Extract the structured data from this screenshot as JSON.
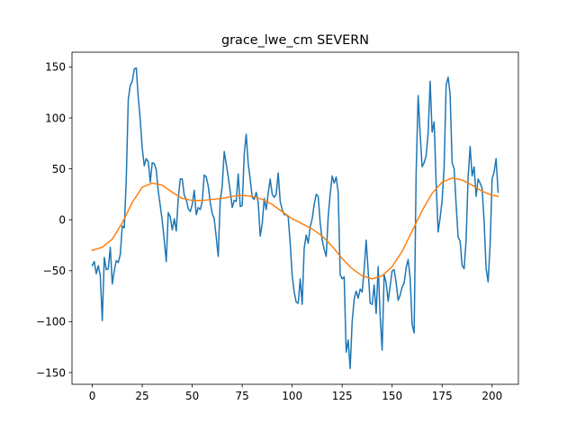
{
  "chart_data": {
    "type": "line",
    "title": "grace_lwe_cm SEVERN",
    "xlabel": "",
    "ylabel": "",
    "xlim": [
      -10.15,
      213.15
    ],
    "ylim": [
      -161.5,
      164.5
    ],
    "x_ticks": [
      0,
      25,
      50,
      75,
      100,
      125,
      150,
      175,
      200
    ],
    "y_ticks": [
      -150,
      -100,
      -50,
      0,
      50,
      100,
      150
    ],
    "grid": false,
    "legend": "none",
    "colors": {
      "series_1": "#1f77b4",
      "series_2": "#ff7f0e"
    },
    "series": [
      {
        "x": [
          0,
          1,
          2,
          3,
          4,
          5,
          6,
          7,
          8,
          9,
          10,
          11,
          12,
          13,
          14,
          15,
          16,
          17,
          18,
          19,
          20,
          21,
          22,
          23,
          24,
          25,
          26,
          27,
          28,
          29,
          30,
          31,
          32,
          33,
          34,
          35,
          36,
          37,
          38,
          39,
          40,
          41,
          42,
          43,
          44,
          45,
          46,
          47,
          48,
          49,
          50,
          51,
          52,
          53,
          54,
          55,
          56,
          57,
          58,
          59,
          60,
          61,
          62,
          63,
          64,
          65,
          66,
          67,
          68,
          69,
          70,
          71,
          72,
          73,
          74,
          75,
          76,
          77,
          78,
          79,
          80,
          81,
          82,
          83,
          84,
          85,
          86,
          87,
          88,
          89,
          90,
          91,
          92,
          93,
          94,
          95,
          96,
          97,
          98,
          99,
          100,
          101,
          102,
          103,
          104,
          105,
          106,
          107,
          108,
          109,
          110,
          111,
          112,
          113,
          114,
          115,
          116,
          117,
          118,
          119,
          120,
          121,
          122,
          123,
          124,
          125,
          126,
          127,
          128,
          129,
          130,
          131,
          132,
          133,
          134,
          135,
          136,
          137,
          138,
          139,
          140,
          141,
          142,
          143,
          144,
          145,
          146,
          147,
          148,
          149,
          150,
          151,
          152,
          153,
          154,
          155,
          156,
          157,
          158,
          159,
          160,
          161,
          162,
          163,
          164,
          165,
          166,
          167,
          168,
          169,
          170,
          171,
          172,
          173,
          174,
          175,
          176,
          177,
          178,
          179,
          180,
          181,
          182,
          183,
          184,
          185,
          186,
          187,
          188,
          189,
          190,
          191,
          192,
          193,
          194,
          195,
          196,
          197,
          198,
          199,
          200,
          201,
          202,
          203
        ],
        "values": [
          -45,
          -41,
          -53,
          -45,
          -55,
          -99,
          -37,
          -49,
          -48,
          -27,
          -63,
          -50,
          -40,
          -42,
          -34,
          -6,
          -8,
          40,
          118,
          132,
          136,
          148,
          149,
          120,
          98,
          70,
          53,
          60,
          57,
          37,
          56,
          55,
          49,
          28,
          14,
          -1,
          -20,
          -41,
          7,
          3,
          -10,
          1,
          -11,
          21,
          40,
          40,
          24,
          20,
          11,
          8,
          15,
          29,
          5,
          12,
          10,
          18,
          44,
          42,
          33,
          17,
          6,
          1,
          -17,
          -36,
          19,
          33,
          67,
          55,
          42,
          28,
          12,
          19,
          18,
          45,
          13,
          14,
          64,
          84,
          55,
          40,
          22,
          20,
          27,
          17,
          -16,
          -4,
          21,
          10,
          26,
          40,
          25,
          22,
          25,
          46,
          18,
          10,
          5,
          5,
          3,
          -23,
          -55,
          -71,
          -81,
          -82,
          -58,
          -83,
          -28,
          -15,
          -23,
          -7,
          1,
          15,
          25,
          23,
          -3,
          -20,
          -29,
          -36,
          3,
          25,
          43,
          36,
          42,
          27,
          -54,
          -58,
          -56,
          -130,
          -118,
          -146,
          -100,
          -78,
          -70,
          -77,
          -68,
          -71,
          -49,
          -20,
          -50,
          -82,
          -83,
          -64,
          -92,
          -46,
          -94,
          -128,
          -54,
          -62,
          -80,
          -65,
          -50,
          -49,
          -62,
          -79,
          -74,
          -66,
          -62,
          -47,
          -39,
          -57,
          -103,
          -111,
          46,
          122,
          84,
          52,
          56,
          63,
          85,
          136,
          86,
          96,
          36,
          -12,
          2,
          19,
          52,
          132,
          140,
          123,
          56,
          50,
          15,
          -17,
          -21,
          -45,
          -48,
          -20,
          42,
          72,
          43,
          52,
          23,
          40,
          36,
          31,
          -2,
          -48,
          -61,
          -25,
          40,
          47,
          60,
          27
        ]
      },
      {
        "x": [
          0,
          5,
          10,
          15,
          20,
          25,
          30,
          35,
          40,
          45,
          50,
          55,
          60,
          65,
          70,
          75,
          80,
          85,
          90,
          95,
          100,
          105,
          110,
          115,
          120,
          125,
          130,
          135,
          140,
          145,
          150,
          155,
          160,
          165,
          170,
          175,
          180,
          185,
          190,
          195,
          200,
          203
        ],
        "values": [
          -30,
          -27,
          -19,
          -3,
          17,
          32,
          36,
          34,
          27,
          21,
          19,
          19,
          20,
          21,
          23,
          24,
          23,
          20,
          15,
          8,
          1,
          -4,
          -9,
          -16,
          -26,
          -38,
          -48,
          -55,
          -58,
          -55,
          -46,
          -31,
          -11,
          9,
          26,
          37,
          41,
          39,
          34,
          28,
          24,
          23
        ]
      }
    ]
  }
}
